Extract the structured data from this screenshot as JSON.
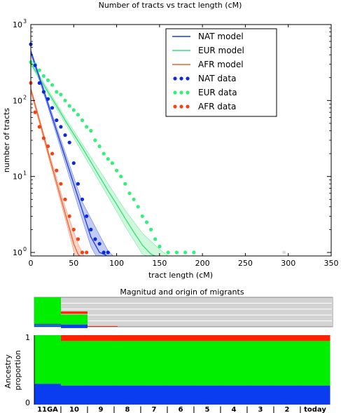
{
  "chart_data": [
    {
      "type": "scatter",
      "title": "Number of tracts vs tract length (cM)",
      "xlabel": "tract length (cM)",
      "ylabel": "number of tracts",
      "xlim": [
        0,
        350
      ],
      "ylim": [
        0.9,
        1000
      ],
      "yscale": "log",
      "xticks": [
        "0",
        "50",
        "100",
        "150",
        "200",
        "250",
        "300",
        "350"
      ],
      "yticks": [
        {
          "value": 1,
          "label": "10",
          "exp": "0"
        },
        {
          "value": 10,
          "label": "10",
          "exp": "1"
        },
        {
          "value": 100,
          "label": "10",
          "exp": "2"
        },
        {
          "value": 1000,
          "label": "10",
          "exp": "3"
        }
      ],
      "legend_position": "top-right",
      "legend": [
        {
          "label": "NAT model",
          "kind": "line",
          "color": "#1a3cdc"
        },
        {
          "label": "EUR model",
          "kind": "line",
          "color": "#33e07a"
        },
        {
          "label": "AFR model",
          "kind": "line",
          "color": "#f0602a"
        },
        {
          "label": "NAT data",
          "kind": "dots",
          "color": "#0b2bd6"
        },
        {
          "label": "EUR data",
          "kind": "dots",
          "color": "#33f07a"
        },
        {
          "label": "AFR data",
          "kind": "dots",
          "color": "#ee4418"
        }
      ],
      "series": [
        {
          "id": "NAT",
          "model": [
            [
              0,
              440
            ],
            [
              10,
              200
            ],
            [
              20,
              90
            ],
            [
              30,
              40
            ],
            [
              40,
              18
            ],
            [
              50,
              8
            ],
            [
              60,
              3.6
            ],
            [
              70,
              1.6
            ],
            [
              80,
              1.0
            ],
            [
              88,
              0.92
            ]
          ],
          "band_low": [
            [
              0,
              410
            ],
            [
              20,
              82
            ],
            [
              40,
              15
            ],
            [
              60,
              2.7
            ],
            [
              70,
              1.2
            ],
            [
              76,
              0.9
            ]
          ],
          "band_high": [
            [
              0,
              470
            ],
            [
              20,
              98
            ],
            [
              40,
              21
            ],
            [
              60,
              4.6
            ],
            [
              80,
              1.7
            ],
            [
              90,
              1.05
            ],
            [
              96,
              0.9
            ]
          ],
          "data": [
            [
              0,
              550
            ],
            [
              5,
              290
            ],
            [
              10,
              170
            ],
            [
              15,
              130
            ],
            [
              20,
              105
            ],
            [
              25,
              80
            ],
            [
              30,
              55
            ],
            [
              35,
              45
            ],
            [
              40,
              35
            ],
            [
              45,
              28
            ],
            [
              50,
              15
            ],
            [
              55,
              8
            ],
            [
              60,
              5
            ],
            [
              65,
              3
            ],
            [
              70,
              2
            ],
            [
              75,
              1.5
            ],
            [
              80,
              1.3
            ],
            [
              85,
              1
            ],
            [
              90,
              1
            ]
          ]
        },
        {
          "id": "EUR",
          "model": [
            [
              0,
              310
            ],
            [
              10,
              200
            ],
            [
              20,
              130
            ],
            [
              30,
              85
            ],
            [
              40,
              55
            ],
            [
              50,
              36
            ],
            [
              60,
              24
            ],
            [
              70,
              15.5
            ],
            [
              80,
              10
            ],
            [
              90,
              6.5
            ],
            [
              100,
              4.3
            ],
            [
              110,
              2.8
            ],
            [
              120,
              1.85
            ],
            [
              130,
              1.25
            ],
            [
              140,
              0.95
            ],
            [
              145,
              0.9
            ]
          ],
          "band_low": [
            [
              0,
              290
            ],
            [
              40,
              50
            ],
            [
              80,
              8.5
            ],
            [
              110,
              2.2
            ],
            [
              130,
              0.95
            ],
            [
              135,
              0.9
            ]
          ],
          "band_high": [
            [
              0,
              330
            ],
            [
              40,
              60
            ],
            [
              80,
              12
            ],
            [
              110,
              3.6
            ],
            [
              130,
              1.8
            ],
            [
              150,
              1.1
            ],
            [
              160,
              0.9
            ]
          ],
          "data": [
            [
              0,
              320
            ],
            [
              5,
              300
            ],
            [
              10,
              250
            ],
            [
              15,
              210
            ],
            [
              20,
              185
            ],
            [
              25,
              160
            ],
            [
              30,
              130
            ],
            [
              35,
              120
            ],
            [
              40,
              100
            ],
            [
              45,
              85
            ],
            [
              50,
              75
            ],
            [
              55,
              65
            ],
            [
              60,
              55
            ],
            [
              65,
              45
            ],
            [
              70,
              40
            ],
            [
              75,
              30
            ],
            [
              80,
              25
            ],
            [
              85,
              20
            ],
            [
              90,
              17
            ],
            [
              95,
              15
            ],
            [
              100,
              12
            ],
            [
              105,
              10
            ],
            [
              110,
              8
            ],
            [
              115,
              6
            ],
            [
              120,
              5
            ],
            [
              125,
              4
            ],
            [
              130,
              3
            ],
            [
              135,
              2.5
            ],
            [
              140,
              2
            ],
            [
              145,
              1.5
            ],
            [
              150,
              1.2
            ],
            [
              160,
              1
            ],
            [
              170,
              1
            ],
            [
              180,
              1
            ],
            [
              190,
              1
            ],
            [
              295,
              1
            ]
          ]
        },
        {
          "id": "AFR",
          "model": [
            [
              0,
              140
            ],
            [
              10,
              55
            ],
            [
              20,
              21
            ],
            [
              30,
              8.3
            ],
            [
              40,
              3.3
            ],
            [
              50,
              1.3
            ],
            [
              55,
              0.95
            ],
            [
              57,
              0.9
            ]
          ],
          "band_low": [
            [
              0,
              130
            ],
            [
              20,
              19
            ],
            [
              40,
              2.8
            ],
            [
              50,
              1.05
            ],
            [
              52,
              0.9
            ]
          ],
          "band_high": [
            [
              0,
              150
            ],
            [
              20,
              23
            ],
            [
              40,
              4
            ],
            [
              55,
              1.3
            ],
            [
              62,
              0.9
            ]
          ],
          "data": [
            [
              0,
              170
            ],
            [
              5,
              70
            ],
            [
              10,
              45
            ],
            [
              15,
              32
            ],
            [
              20,
              25
            ],
            [
              25,
              20
            ],
            [
              30,
              12
            ],
            [
              35,
              8
            ],
            [
              40,
              5
            ],
            [
              45,
              3
            ],
            [
              50,
              2
            ],
            [
              55,
              1.5
            ],
            [
              60,
              1
            ],
            [
              65,
              1
            ]
          ]
        }
      ]
    },
    {
      "type": "bar",
      "title": "Magnitud and origin of migrants",
      "ylabel": "Ancestry\nproportion",
      "yticks": [
        "0",
        "1"
      ],
      "x_labels": [
        "11GA",
        "10",
        "9",
        "8",
        "7",
        "6",
        "5",
        "4",
        "3",
        "2",
        "today"
      ],
      "colors": {
        "NAT": "#0a3cf0",
        "EUR": "#00ee00",
        "AFR": "#ff2200",
        "empty": "#d3d3d3"
      },
      "migrants": [
        {
          "generation": "11GA",
          "NAT": 0.1,
          "EUR": 0.9
        },
        {
          "generation": "10",
          "AFR": 0.18,
          "EUR": 0.34,
          "NAT": 0.12
        }
      ],
      "proportions": [
        {
          "generation": "11GA",
          "NAT": 0.3,
          "EUR": 0.7,
          "AFR": 0.0
        },
        {
          "generation": "10",
          "NAT": 0.275,
          "EUR": 0.64,
          "AFR": 0.085
        },
        {
          "generation": "9",
          "NAT": 0.275,
          "EUR": 0.64,
          "AFR": 0.085
        },
        {
          "generation": "8",
          "NAT": 0.275,
          "EUR": 0.64,
          "AFR": 0.085
        },
        {
          "generation": "7",
          "NAT": 0.275,
          "EUR": 0.64,
          "AFR": 0.085
        },
        {
          "generation": "6",
          "NAT": 0.275,
          "EUR": 0.64,
          "AFR": 0.085
        },
        {
          "generation": "5",
          "NAT": 0.275,
          "EUR": 0.64,
          "AFR": 0.085
        },
        {
          "generation": "4",
          "NAT": 0.275,
          "EUR": 0.64,
          "AFR": 0.085
        },
        {
          "generation": "3",
          "NAT": 0.275,
          "EUR": 0.64,
          "AFR": 0.085
        },
        {
          "generation": "2",
          "NAT": 0.275,
          "EUR": 0.64,
          "AFR": 0.085
        },
        {
          "generation": "today",
          "NAT": 0.275,
          "EUR": 0.64,
          "AFR": 0.085
        }
      ]
    }
  ]
}
